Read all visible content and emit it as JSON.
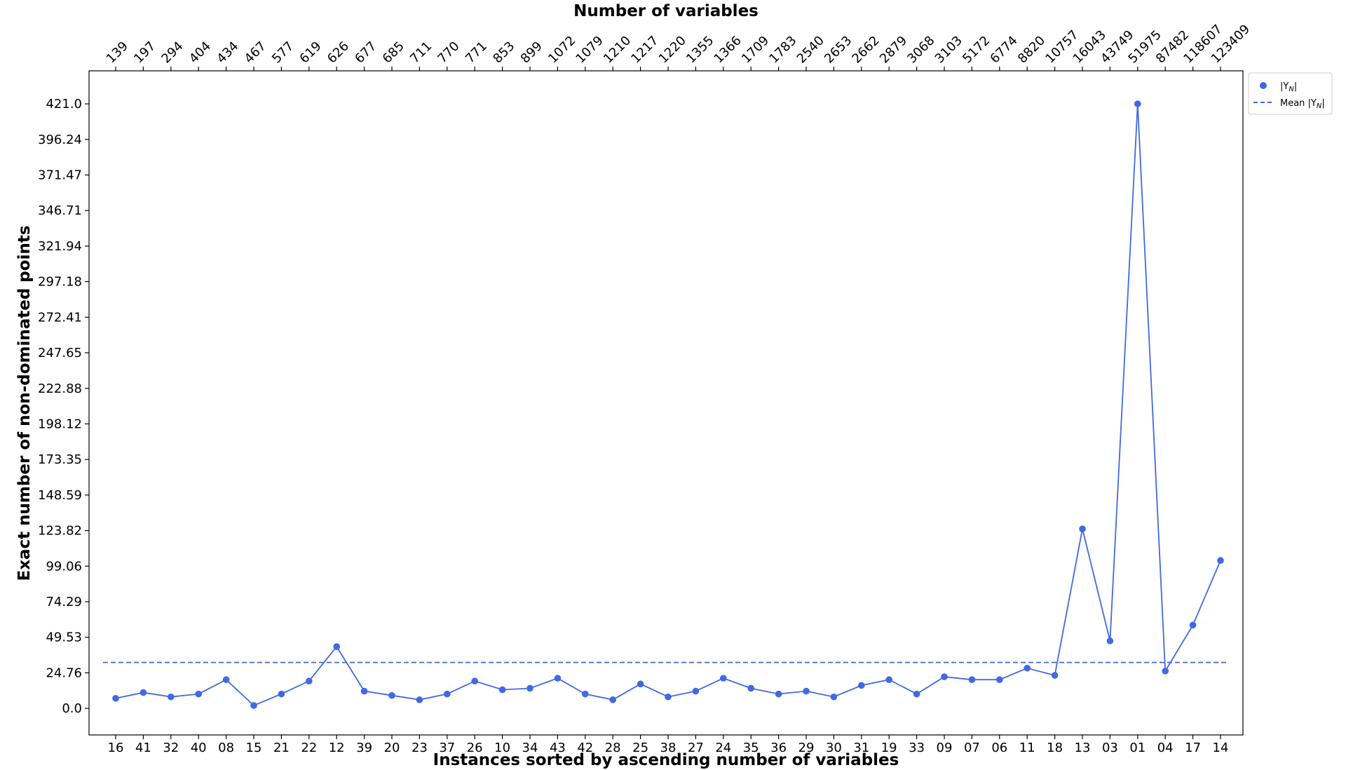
{
  "chart_data": {
    "type": "line",
    "title": "Number of variables",
    "xlabel": "Instances sorted by ascending number of variables",
    "ylabel": "Exact number of non-dominated points",
    "categories": [
      "16",
      "41",
      "32",
      "40",
      "08",
      "15",
      "21",
      "22",
      "12",
      "39",
      "20",
      "23",
      "37",
      "26",
      "10",
      "34",
      "43",
      "42",
      "28",
      "25",
      "38",
      "27",
      "24",
      "35",
      "36",
      "29",
      "30",
      "31",
      "19",
      "33",
      "09",
      "07",
      "06",
      "11",
      "18",
      "13",
      "03",
      "01",
      "04",
      "17",
      "14"
    ],
    "top_axis_labels": [
      "139",
      "197",
      "294",
      "404",
      "434",
      "467",
      "577",
      "619",
      "626",
      "677",
      "685",
      "711",
      "770",
      "771",
      "853",
      "899",
      "1072",
      "1079",
      "1210",
      "1217",
      "1220",
      "1355",
      "1366",
      "1709",
      "1783",
      "2540",
      "2653",
      "2662",
      "2879",
      "3068",
      "3103",
      "5172",
      "6774",
      "8820",
      "10757",
      "16043",
      "43749",
      "51975",
      "87482",
      "118607",
      "123409"
    ],
    "y_ticks": [
      "0.0",
      "24.76",
      "49.53",
      "74.29",
      "99.06",
      "123.82",
      "148.59",
      "173.35",
      "198.12",
      "222.88",
      "247.65",
      "272.41",
      "297.18",
      "321.94",
      "346.71",
      "371.47",
      "396.24",
      "421.0"
    ],
    "ylim": [
      -18.5,
      444
    ],
    "series": [
      {
        "name": "|Y_N|",
        "color": "#4169e1",
        "values": [
          7,
          11,
          8,
          10,
          20,
          2,
          10,
          19,
          43,
          12,
          9,
          6,
          10,
          19,
          13,
          14,
          21,
          10,
          6,
          17,
          8,
          12,
          21,
          14,
          10,
          12,
          8,
          16,
          20,
          10,
          22,
          20,
          20,
          28,
          23,
          125,
          47,
          421,
          26,
          58,
          103
        ]
      }
    ],
    "mean": {
      "name": "Mean |Y_N|",
      "value": 32,
      "color": "#4169e1"
    },
    "legend": {
      "position": "outside-top-right",
      "entries": [
        "|Y_N|",
        "Mean |Y_N|"
      ]
    },
    "grid": false
  }
}
